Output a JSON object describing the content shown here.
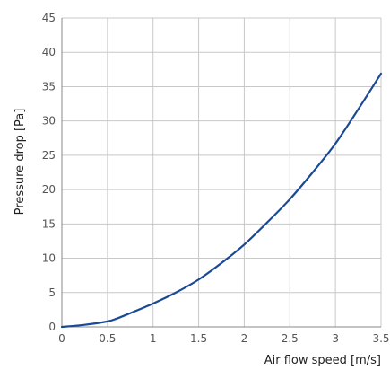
{
  "chart_data": {
    "type": "line",
    "title": "",
    "xlabel": "Air flow speed [m/s]",
    "ylabel": "Pressure drop [Pa]",
    "xlim": [
      0,
      3.5
    ],
    "ylim": [
      0,
      45
    ],
    "grid": true,
    "x_ticks": [
      "0",
      "0.5",
      "1",
      "1.5",
      "2",
      "2.5",
      "3",
      "3.5"
    ],
    "y_ticks": [
      "0",
      "5",
      "10",
      "15",
      "20",
      "25",
      "30",
      "35",
      "40",
      "45"
    ],
    "colors": {
      "line": "#1a4a96",
      "grid": "#c8c8c8"
    },
    "series": [
      {
        "x": [
          0,
          0.25,
          0.5,
          0.6,
          0.75,
          1.0,
          1.25,
          1.5,
          1.75,
          2.0,
          2.25,
          2.5,
          2.75,
          3.0,
          3.25,
          3.5
        ],
        "y": [
          0,
          0.3,
          0.8,
          1.2,
          2.0,
          3.4,
          5.0,
          6.9,
          9.3,
          12.0,
          15.2,
          18.6,
          22.5,
          26.7,
          31.7,
          36.9
        ]
      }
    ]
  }
}
